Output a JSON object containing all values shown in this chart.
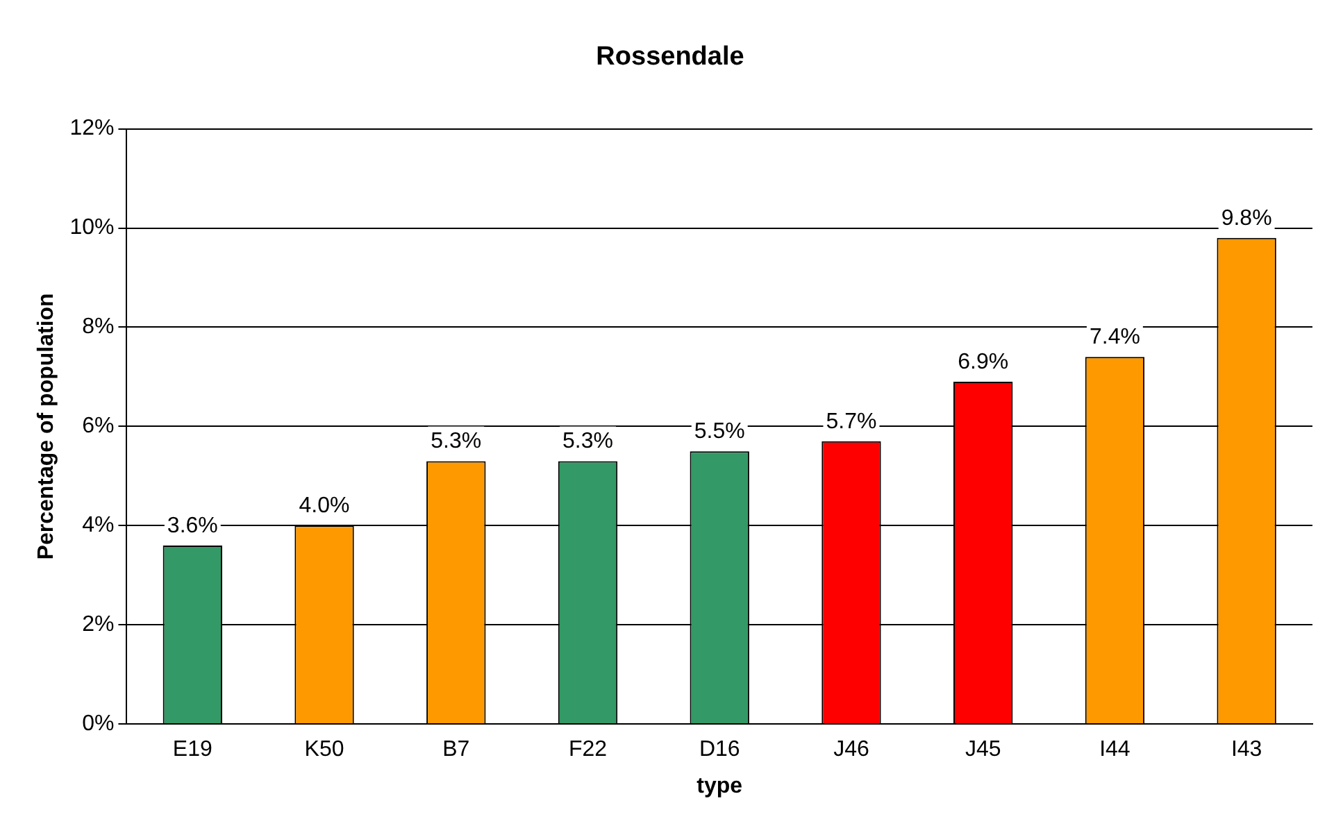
{
  "chart_data": {
    "type": "bar",
    "title": "Rossendale",
    "xlabel": "type",
    "ylabel": "Percentage of population",
    "categories": [
      "E19",
      "K50",
      "B7",
      "F22",
      "D16",
      "J46",
      "J45",
      "I44",
      "I43"
    ],
    "values": [
      3.6,
      4.0,
      5.3,
      5.3,
      5.5,
      5.7,
      6.9,
      7.4,
      9.8
    ],
    "colors": [
      "#339966",
      "#ff9900",
      "#ff9900",
      "#339966",
      "#339966",
      "#ff0000",
      "#ff0000",
      "#ff9900",
      "#ff9900"
    ],
    "value_labels": [
      "3.6%",
      "4.0%",
      "5.3%",
      "5.3%",
      "5.5%",
      "5.7%",
      "6.9%",
      "7.4%",
      "9.8%"
    ],
    "ylim": [
      0,
      12
    ],
    "yticks": [
      {
        "value": 0,
        "label": "0%"
      },
      {
        "value": 2,
        "label": "2%"
      },
      {
        "value": 4,
        "label": "4%"
      },
      {
        "value": 6,
        "label": "6%"
      },
      {
        "value": 8,
        "label": "8%"
      },
      {
        "value": 10,
        "label": "10%"
      },
      {
        "value": 12,
        "label": "12%"
      }
    ],
    "grid": "y",
    "legend": false
  }
}
